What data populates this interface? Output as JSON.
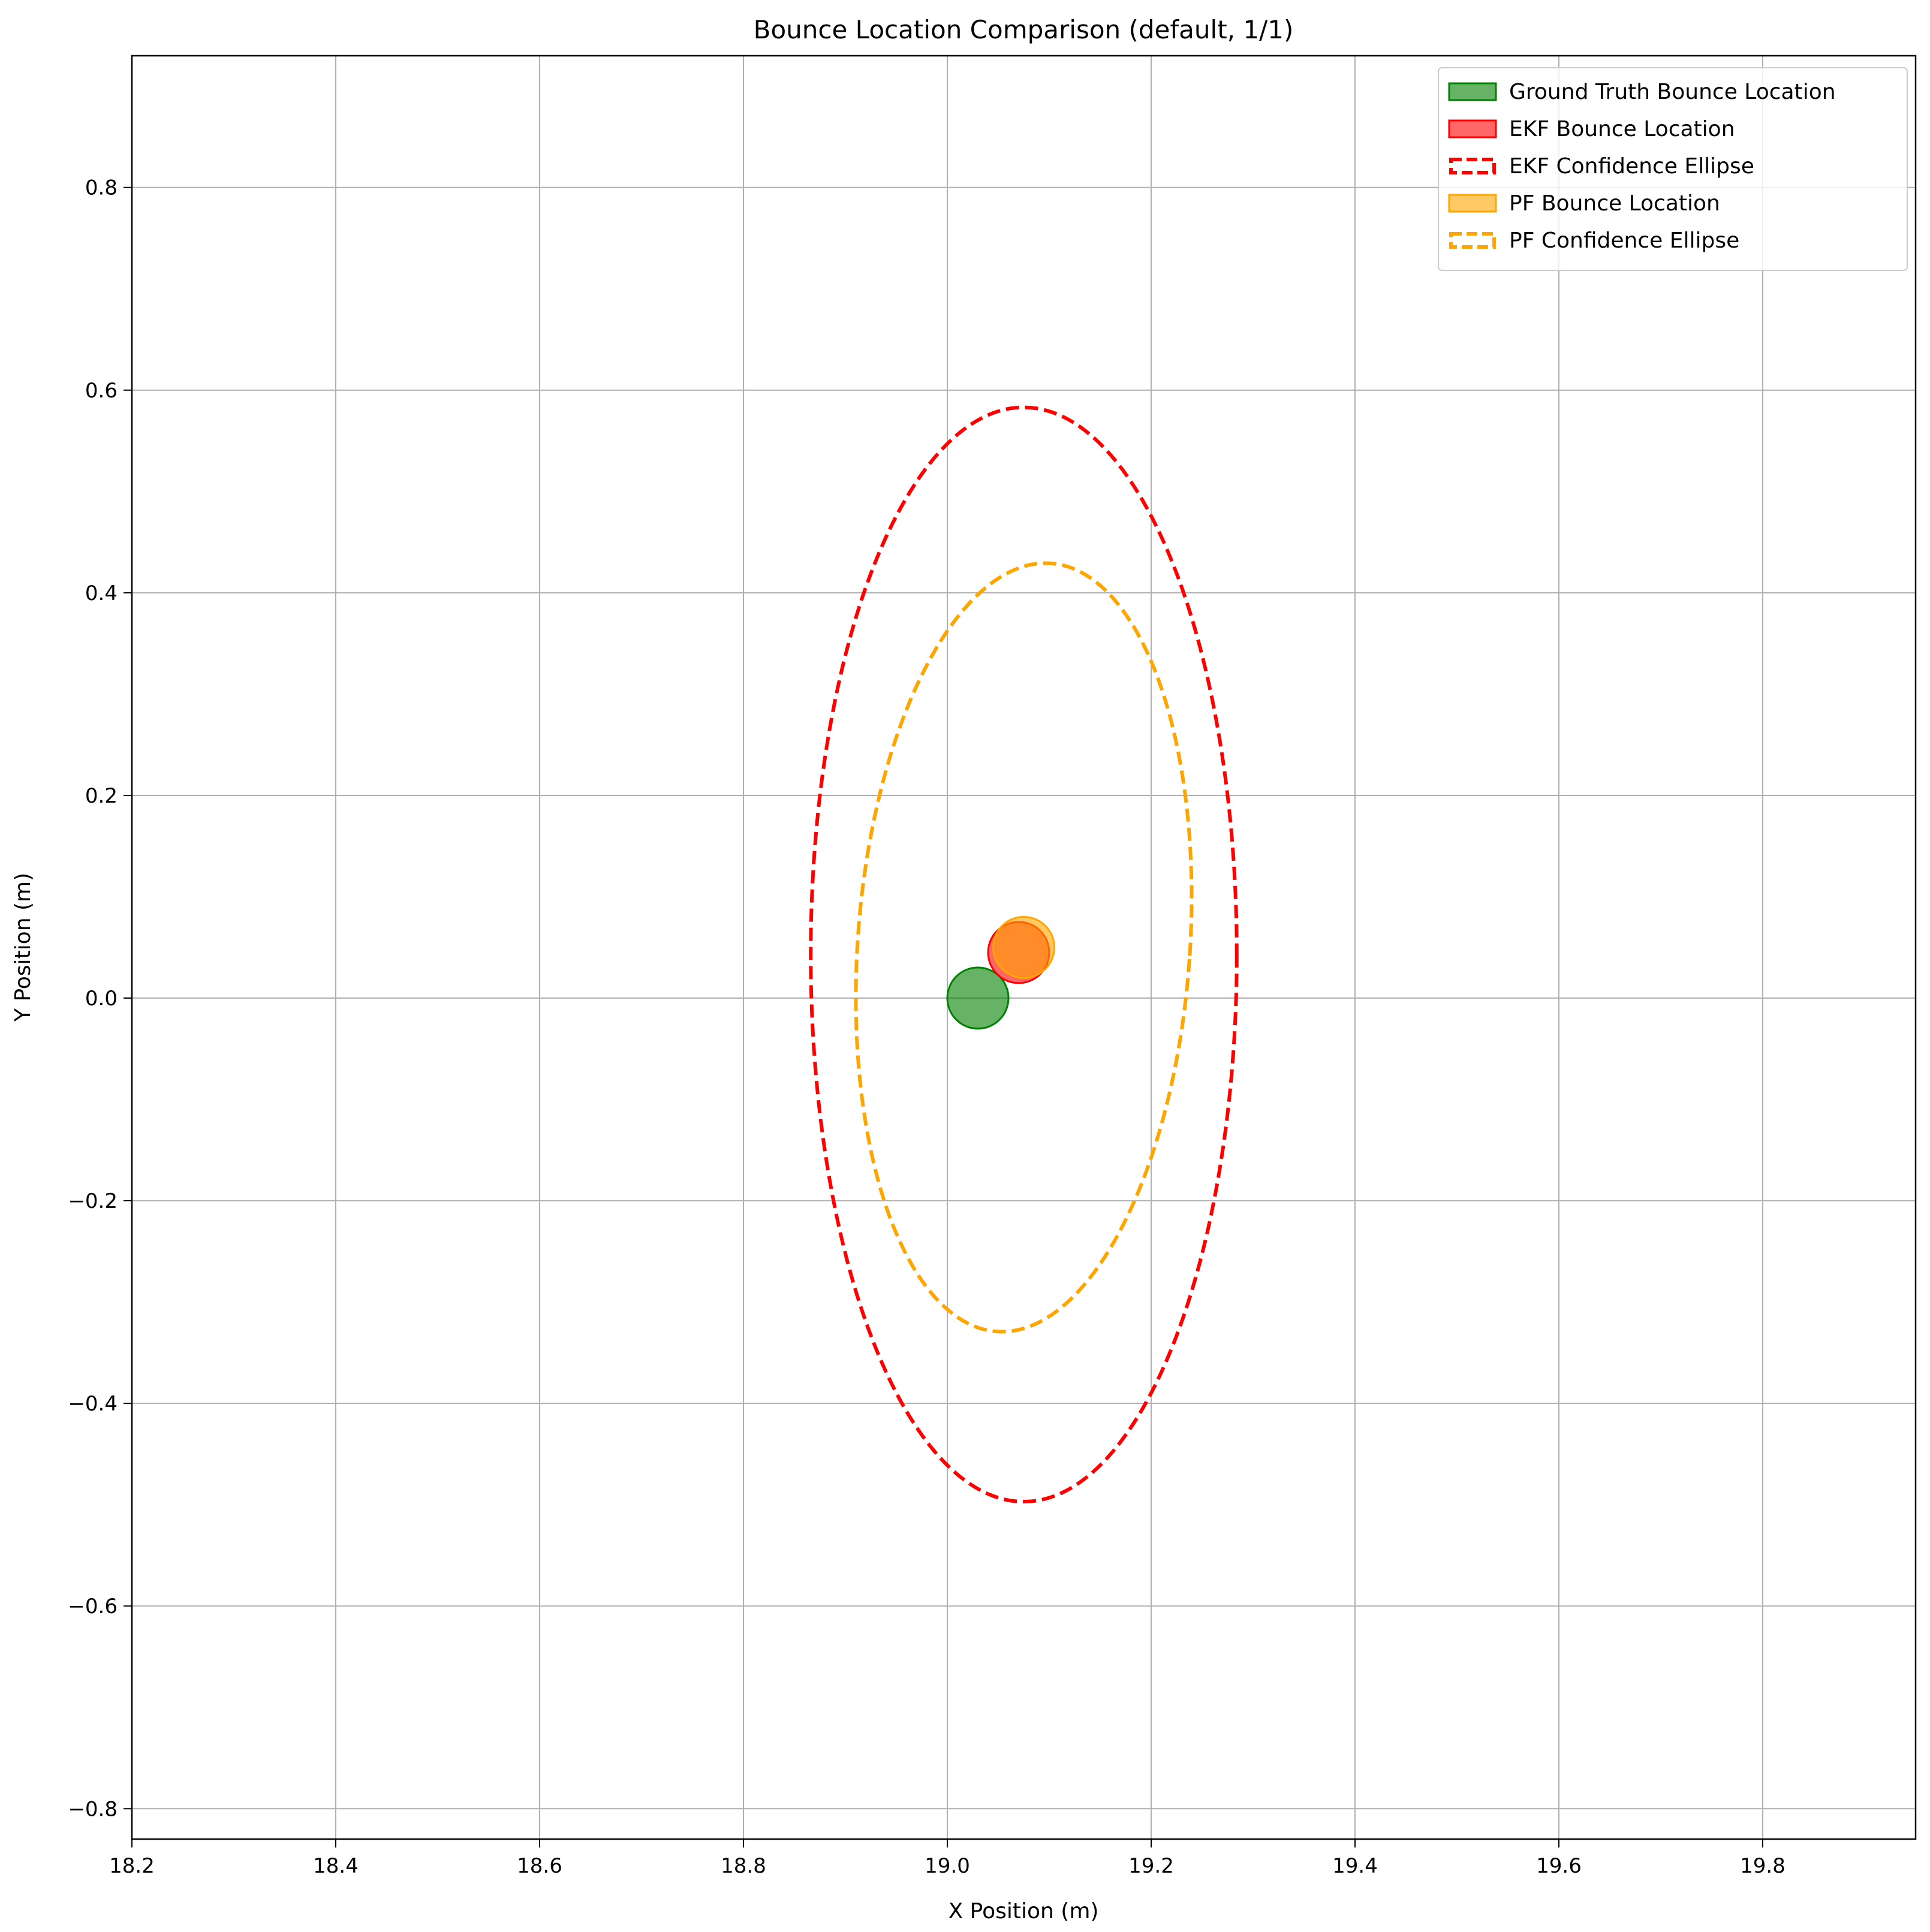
{
  "chart_data": {
    "type": "scatter",
    "title": "Bounce Location Comparison (default, 1/1)",
    "xlabel": "X Position (m)",
    "ylabel": "Y Position (m)",
    "xlim": [
      18.2,
      19.95
    ],
    "ylim": [
      -0.83,
      0.93
    ],
    "xticks": [
      18.2,
      18.4,
      18.6,
      18.8,
      19.0,
      19.2,
      19.4,
      19.6,
      19.8
    ],
    "xtick_labels": [
      "18.2",
      "18.4",
      "18.6",
      "18.8",
      "19.0",
      "19.2",
      "19.4",
      "19.6",
      "19.8"
    ],
    "yticks": [
      0.8,
      0.6,
      0.4,
      0.2,
      0.0,
      -0.2,
      -0.4,
      -0.6,
      -0.8
    ],
    "ytick_labels": [
      "0.8",
      "0.6",
      "0.4",
      "0.2",
      "0.0",
      "−0.2",
      "−0.4",
      "−0.6",
      "−0.8"
    ],
    "grid": true,
    "legend_position": "top-right",
    "points": [
      {
        "name": "Ground Truth Bounce Location",
        "x": 19.03,
        "y": 0.0,
        "radius": 0.03,
        "color": "#008000",
        "alpha": 0.6
      },
      {
        "name": "EKF Bounce Location",
        "x": 19.07,
        "y": 0.045,
        "radius": 0.03,
        "color": "#ff0000",
        "alpha": 0.6
      },
      {
        "name": "PF Bounce Location",
        "x": 19.075,
        "y": 0.05,
        "radius": 0.03,
        "color": "#ffa500",
        "alpha": 0.6
      }
    ],
    "ellipses": [
      {
        "name": "EKF Confidence Ellipse",
        "cx": 19.075,
        "cy": 0.043,
        "rx": 0.209,
        "ry": 0.54,
        "rotation_deg": 0,
        "color": "#ff0000",
        "linestyle": "dashed"
      },
      {
        "name": "PF Confidence Ellipse",
        "cx": 19.075,
        "cy": 0.05,
        "rx": 0.163,
        "ry": 0.38,
        "rotation_deg": 4,
        "color": "#ffa500",
        "linestyle": "dashed"
      }
    ],
    "legend": [
      {
        "label": "Ground Truth Bounce Location",
        "kind": "patch",
        "color": "#008000"
      },
      {
        "label": "EKF Bounce Location",
        "kind": "patch",
        "color": "#ff0000"
      },
      {
        "label": "EKF Confidence Ellipse",
        "kind": "dashed",
        "color": "#ff0000"
      },
      {
        "label": "PF Bounce Location",
        "kind": "patch",
        "color": "#ffa500"
      },
      {
        "label": "PF Confidence Ellipse",
        "kind": "dashed",
        "color": "#ffa500"
      }
    ]
  }
}
